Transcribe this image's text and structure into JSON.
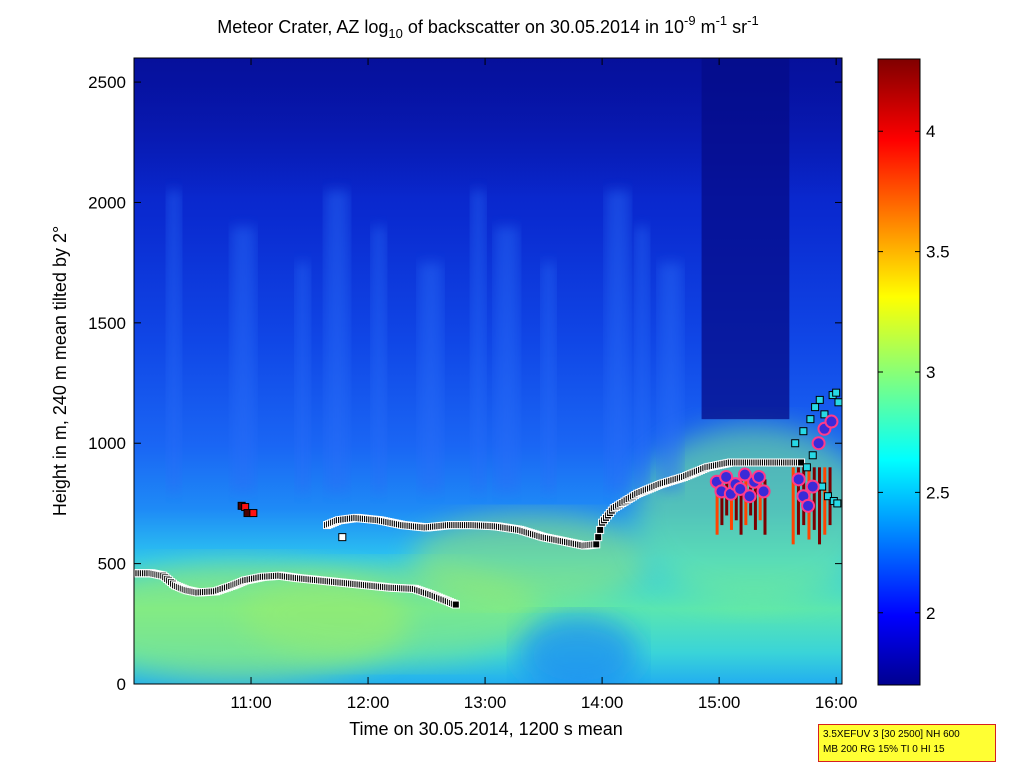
{
  "title": {
    "prefix": "Meteor Crater, AZ log",
    "sub": "10",
    "middle": " of backscatter on 30.05.2014 in 10",
    "sup1": "-9",
    "unit1": " m",
    "sup2": "-1",
    "unit2": " sr",
    "sup3": "-1"
  },
  "info_box": {
    "line1": "3.5XEFUV 3 [30 2500] NH 600",
    "line2": "MB 200 RG 15% TI 0 HI 15"
  },
  "colors": {
    "border": "#d62020",
    "box_bg": "#ffff33",
    "cloud_marker": "#4a0000",
    "layer_marker": "#000000",
    "cbh_marker": "#27d9e6",
    "rain_marker": "#3a2ad8",
    "rain_marker_edge": "#ff3a8a"
  },
  "chart_data": {
    "type": "heatmap",
    "xlabel": "Time on 30.05.2014, 1200 s mean",
    "ylabel": "Height in m, 240 m mean tilted by 2°",
    "xlim": [
      10.0,
      16.05
    ],
    "ylim": [
      0,
      2600
    ],
    "x_ticks": [
      11,
      12,
      13,
      14,
      15,
      16
    ],
    "x_tick_labels": [
      "11:00",
      "12:00",
      "13:00",
      "14:00",
      "15:00",
      "16:00"
    ],
    "y_ticks": [
      0,
      500,
      1000,
      1500,
      2000,
      2500
    ],
    "y_tick_labels": [
      "0",
      "500",
      "1000",
      "1500",
      "2000",
      "2500"
    ],
    "colormap": "jet",
    "clim": [
      1.7,
      4.3
    ],
    "colorbar_ticks": [
      2,
      2.5,
      3,
      3.5,
      4
    ],
    "colorbar_tick_labels": [
      "2",
      "2.5",
      "3",
      "3.5",
      "4"
    ],
    "lower_layer_line": {
      "x": [
        10.0,
        10.15,
        10.25,
        10.35,
        10.45,
        10.55,
        10.7,
        10.85,
        10.95,
        11.1,
        11.25,
        11.4,
        11.6,
        11.8,
        12.0,
        12.2,
        12.4,
        12.55,
        12.7,
        12.75
      ],
      "y": [
        460,
        460,
        450,
        410,
        390,
        380,
        385,
        410,
        430,
        445,
        450,
        440,
        430,
        420,
        410,
        400,
        395,
        370,
        340,
        330
      ]
    },
    "upper_layer_line": {
      "x": [
        11.65,
        11.75,
        11.9,
        12.1,
        12.3,
        12.5,
        12.7,
        12.9,
        13.1,
        13.3,
        13.5,
        13.7,
        13.85,
        13.95,
        14.0,
        14.1,
        14.3,
        14.5,
        14.7,
        14.9,
        15.1,
        15.3,
        15.5,
        15.7
      ],
      "y": [
        660,
        680,
        690,
        680,
        660,
        650,
        660,
        660,
        655,
        640,
        610,
        590,
        575,
        580,
        670,
        730,
        790,
        830,
        860,
        900,
        920,
        920,
        920,
        920
      ]
    },
    "isolated_markers": [
      {
        "x": 10.92,
        "y": 740
      },
      {
        "x": 10.95,
        "y": 735
      },
      {
        "x": 10.97,
        "y": 710
      },
      {
        "x": 11.02,
        "y": 710
      },
      {
        "x": 11.78,
        "y": 610
      }
    ],
    "cloud_base_markers": {
      "x": [
        15.65,
        15.72,
        15.78,
        15.82,
        15.86,
        15.9,
        15.94,
        15.97,
        16.0,
        16.02,
        15.75,
        15.8,
        15.88,
        15.93,
        15.98,
        16.01
      ],
      "y": [
        1000,
        1050,
        1100,
        1150,
        1180,
        1120,
        1080,
        1200,
        1210,
        1170,
        900,
        950,
        820,
        780,
        760,
        750
      ]
    },
    "precipitation_markers": {
      "x": [
        14.98,
        15.02,
        15.06,
        15.1,
        15.14,
        15.18,
        15.22,
        15.26,
        15.3,
        15.34,
        15.38,
        15.68,
        15.72,
        15.76,
        15.8,
        15.85,
        15.9,
        15.96
      ],
      "y": [
        840,
        800,
        860,
        790,
        830,
        810,
        870,
        780,
        840,
        860,
        800,
        850,
        780,
        740,
        820,
        1000,
        1060,
        1090
      ]
    },
    "rain_shafts": [
      {
        "x0": 14.97,
        "x1": 15.42,
        "y_bottom": 620,
        "y_top": 850
      },
      {
        "x0": 15.62,
        "x1": 15.98,
        "y_bottom": 580,
        "y_top": 900
      }
    ]
  }
}
